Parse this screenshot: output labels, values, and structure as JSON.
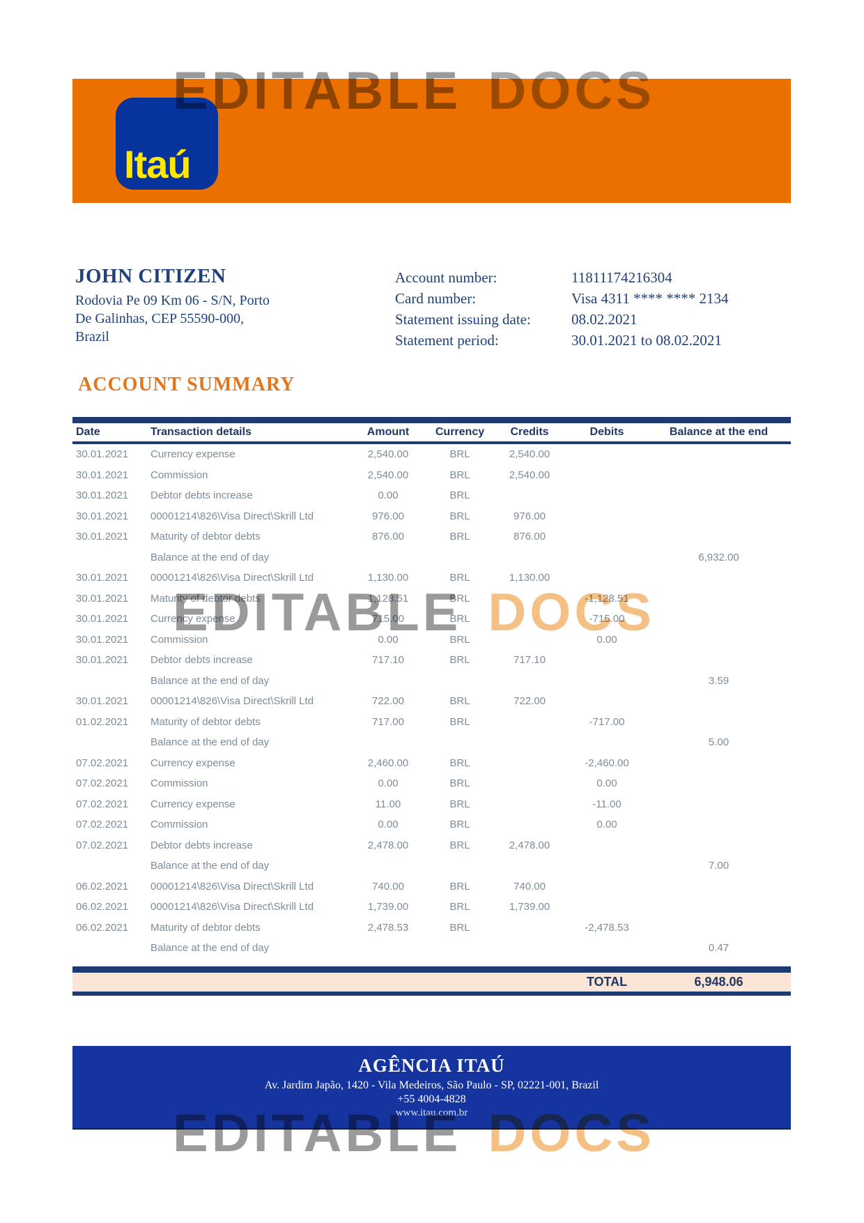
{
  "watermark": {
    "word1": "EDITABLE",
    "word2": "DOCS"
  },
  "brand": {
    "logo_text": "Itaú",
    "orange": "#ec7000",
    "logo_blue": "#07339c",
    "logo_yellow": "#ffe800",
    "navy": "#1f3864",
    "footer_blue": "#16349f",
    "total_bg": "#fbe5d6",
    "heading_orange": "#e2761e"
  },
  "customer": {
    "name": "JOHN CITIZEN",
    "address_line1": "Rodovia Pe 09 Km 06 - S/N, Porto",
    "address_line2": "De Galinhas, CEP 55590-000,",
    "address_line3": "Brazil"
  },
  "account_info": [
    {
      "label": "Account number:",
      "value": "11811174216304"
    },
    {
      "label": "Card number:",
      "value": "Visa 4311 **** **** 2134"
    },
    {
      "label": "Statement issuing date:",
      "value": "08.02.2021"
    },
    {
      "label": "Statement period:",
      "value": "30.01.2021 to 08.02.2021"
    }
  ],
  "section_title": "ACCOUNT SUMMARY",
  "table": {
    "headers": [
      "Date",
      "Transaction details",
      "Amount",
      "Currency",
      "Credits",
      "Debits",
      "Balance at the end"
    ],
    "rows": [
      {
        "date": "30.01.2021",
        "details": "Currency expense",
        "amount": "2,540.00",
        "currency": "BRL",
        "credits": "2,540.00",
        "debits": "",
        "balance": ""
      },
      {
        "date": "30.01.2021",
        "details": "Commission",
        "amount": "2,540.00",
        "currency": "BRL",
        "credits": "2,540.00",
        "debits": "",
        "balance": ""
      },
      {
        "date": "30.01.2021",
        "details": "Debtor debts increase",
        "amount": "0.00",
        "currency": "BRL",
        "credits": "",
        "debits": "",
        "balance": ""
      },
      {
        "date": "30.01.2021",
        "details": "00001214\\826\\Visa Direct\\Skrill Ltd",
        "amount": "976.00",
        "currency": "BRL",
        "credits": "976.00",
        "debits": "",
        "balance": ""
      },
      {
        "date": "30.01.2021",
        "details": "Maturity of debtor debts",
        "amount": "876.00",
        "currency": "BRL",
        "credits": "876.00",
        "debits": "",
        "balance": ""
      },
      {
        "date": "",
        "details": "Balance at the end of day",
        "amount": "",
        "currency": "",
        "credits": "",
        "debits": "",
        "balance": "6,932.00"
      },
      {
        "date": "30.01.2021",
        "details": "00001214\\826\\Visa Direct\\Skrill Ltd",
        "amount": "1,130.00",
        "currency": "BRL",
        "credits": "1,130.00",
        "debits": "",
        "balance": ""
      },
      {
        "date": "30.01.2021",
        "details": "Maturity of debtor debts",
        "amount": "1,128.51",
        "currency": "BRL",
        "credits": "",
        "debits": "-1,128.51",
        "balance": ""
      },
      {
        "date": "30.01.2021",
        "details": "Currency expense",
        "amount": "715.00",
        "currency": "BRL",
        "credits": "",
        "debits": "-715.00",
        "balance": ""
      },
      {
        "date": "30.01.2021",
        "details": "Commission",
        "amount": "0.00",
        "currency": "BRL",
        "credits": "",
        "debits": "0.00",
        "balance": ""
      },
      {
        "date": "30.01.2021",
        "details": "Debtor debts increase",
        "amount": "717.10",
        "currency": "BRL",
        "credits": "717.10",
        "debits": "",
        "balance": ""
      },
      {
        "date": "",
        "details": "Balance at the end of day",
        "amount": "",
        "currency": "",
        "credits": "",
        "debits": "",
        "balance": "3.59"
      },
      {
        "date": "30.01.2021",
        "details": "00001214\\826\\Visa Direct\\Skrill Ltd",
        "amount": "722.00",
        "currency": "BRL",
        "credits": "722.00",
        "debits": "",
        "balance": ""
      },
      {
        "date": "01.02.2021",
        "details": "Maturity of debtor debts",
        "amount": "717.00",
        "currency": "BRL",
        "credits": "",
        "debits": "-717.00",
        "balance": ""
      },
      {
        "date": "",
        "details": "Balance at the end of day",
        "amount": "",
        "currency": "",
        "credits": "",
        "debits": "",
        "balance": "5.00"
      },
      {
        "date": "07.02.2021",
        "details": "Currency expense",
        "amount": "2,460.00",
        "currency": "BRL",
        "credits": "",
        "debits": "-2,460.00",
        "balance": ""
      },
      {
        "date": "07.02.2021",
        "details": "Commission",
        "amount": "0.00",
        "currency": "BRL",
        "credits": "",
        "debits": "0.00",
        "balance": ""
      },
      {
        "date": "07.02.2021",
        "details": "Currency expense",
        "amount": "11.00",
        "currency": "BRL",
        "credits": "",
        "debits": "-11.00",
        "balance": ""
      },
      {
        "date": "07.02.2021",
        "details": "Commission",
        "amount": "0.00",
        "currency": "BRL",
        "credits": "",
        "debits": "0.00",
        "balance": ""
      },
      {
        "date": "07.02.2021",
        "details": "Debtor debts increase",
        "amount": "2,478.00",
        "currency": "BRL",
        "credits": "2,478.00",
        "debits": "",
        "balance": ""
      },
      {
        "date": "",
        "details": "Balance at the end of day",
        "amount": "",
        "currency": "",
        "credits": "",
        "debits": "",
        "balance": "7.00"
      },
      {
        "date": "06.02.2021",
        "details": "00001214\\826\\Visa Direct\\Skrill Ltd",
        "amount": "740.00",
        "currency": "BRL",
        "credits": "740.00",
        "debits": "",
        "balance": ""
      },
      {
        "date": "06.02.2021",
        "details": "00001214\\826\\Visa Direct\\Skrill Ltd",
        "amount": "1,739.00",
        "currency": "BRL",
        "credits": "1,739.00",
        "debits": "",
        "balance": ""
      },
      {
        "date": "06.02.2021",
        "details": "Maturity of debtor debts",
        "amount": "2,478.53",
        "currency": "BRL",
        "credits": "",
        "debits": "-2,478.53",
        "balance": ""
      },
      {
        "date": "",
        "details": "Balance at the end of day",
        "amount": "",
        "currency": "",
        "credits": "",
        "debits": "",
        "balance": "0.47"
      }
    ],
    "total_label": "TOTAL",
    "total_value": "6,948.06"
  },
  "footer": {
    "agency": "AGÊNCIA ITAÚ",
    "address": "Av. Jardim Japão, 1420 - Vila Medeiros, São Paulo - SP, 02221-001, Brazil",
    "phone": "+55 4004-4828",
    "website": "www.itau.com.br"
  }
}
